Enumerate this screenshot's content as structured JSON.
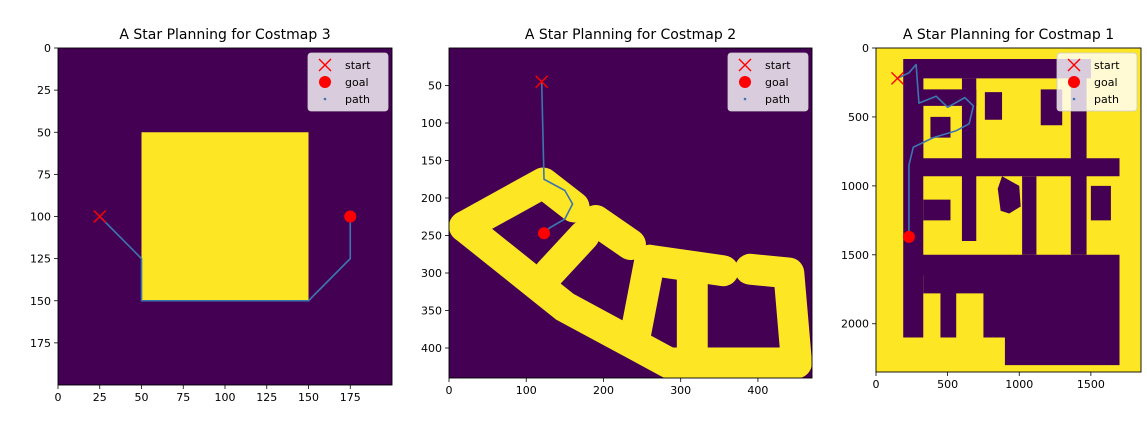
{
  "colors": {
    "free": "#440154",
    "obstacle": "#fde725",
    "path": "#3b76af",
    "start": "#ff0000",
    "goal": "#ff0000"
  },
  "legend_labels": [
    "start",
    "goal",
    "path"
  ],
  "chart_data": [
    {
      "type": "heatmap",
      "title": "A Star Planning for Costmap 3",
      "xlim": [
        0,
        200
      ],
      "ylim": [
        200,
        0
      ],
      "xticks": [
        0,
        25,
        50,
        75,
        100,
        125,
        150,
        175
      ],
      "yticks": [
        0,
        25,
        50,
        75,
        100,
        125,
        150,
        175
      ],
      "colormap": "viridis",
      "background": "free",
      "obstacles": [
        {
          "shape": "rect",
          "x0": 50,
          "y0": 50,
          "x1": 150,
          "y1": 150
        }
      ],
      "start": [
        25,
        100
      ],
      "goal": [
        175,
        100
      ],
      "path": [
        [
          25,
          100
        ],
        [
          50,
          125
        ],
        [
          50,
          150
        ],
        [
          150,
          150
        ],
        [
          175,
          125
        ],
        [
          175,
          100
        ]
      ],
      "legend": [
        "start",
        "goal",
        "path"
      ],
      "legend_position": "top-right"
    },
    {
      "type": "heatmap",
      "title": "A Star Planning for Costmap 2",
      "xlim": [
        0,
        470
      ],
      "ylim": [
        440,
        0
      ],
      "xticks": [
        0,
        100,
        200,
        300,
        400
      ],
      "yticks": [
        50,
        100,
        150,
        200,
        250,
        300,
        350,
        400
      ],
      "colormap": "viridis",
      "background": "free",
      "obstacles": [
        {
          "shape": "stroke",
          "width": 40,
          "points": [
            [
              20,
              238
            ],
            [
              122,
              180
            ],
            [
              162,
              212
            ]
          ]
        },
        {
          "shape": "stroke",
          "width": 40,
          "points": [
            [
              20,
              238
            ],
            [
              150,
              345
            ],
            [
              285,
              420
            ],
            [
              450,
              420
            ],
            [
              440,
              300
            ],
            [
              390,
              295
            ]
          ]
        },
        {
          "shape": "stroke",
          "width": 40,
          "points": [
            [
              190,
              230
            ],
            [
              235,
              262
            ]
          ]
        },
        {
          "shape": "stroke",
          "width": 40,
          "points": [
            [
              130,
              300
            ],
            [
              175,
              250
            ]
          ]
        },
        {
          "shape": "stroke",
          "width": 40,
          "points": [
            [
              260,
              283
            ],
            [
              355,
              297
            ]
          ]
        },
        {
          "shape": "stroke",
          "width": 40,
          "points": [
            [
              260,
              283
            ],
            [
              240,
              390
            ]
          ]
        },
        {
          "shape": "stroke",
          "width": 40,
          "points": [
            [
              315,
              300
            ],
            [
              315,
              418
            ]
          ]
        }
      ],
      "start": [
        120,
        45
      ],
      "goal": [
        123,
        247
      ],
      "path": [
        [
          120,
          45
        ],
        [
          123,
          175
        ],
        [
          150,
          190
        ],
        [
          160,
          208
        ],
        [
          150,
          228
        ],
        [
          130,
          240
        ],
        [
          123,
          247
        ]
      ],
      "legend": [
        "start",
        "goal",
        "path"
      ],
      "legend_position": "top-right"
    },
    {
      "type": "heatmap",
      "title": "A Star Planning for Costmap 1",
      "xlim": [
        0,
        1850
      ],
      "ylim": [
        2350,
        0
      ],
      "xticks": [
        0,
        500,
        1000,
        1500
      ],
      "yticks": [
        0,
        500,
        1000,
        1500,
        2000
      ],
      "colormap": "viridis",
      "background": "obstacle",
      "legend_position": "top-right",
      "legend": [
        "start",
        "goal",
        "path"
      ],
      "free_regions": [
        {
          "shape": "poly",
          "points": [
            [
              230,
              80
            ],
            [
              1500,
              80
            ],
            [
              1500,
              220
            ],
            [
              330,
              220
            ],
            [
              330,
              800
            ],
            [
              230,
              800
            ]
          ]
        },
        {
          "shape": "poly",
          "points": [
            [
              230,
              300
            ],
            [
              700,
              300
            ],
            [
              700,
              420
            ],
            [
              230,
              420
            ]
          ]
        },
        {
          "shape": "poly",
          "points": [
            [
              230,
              800
            ],
            [
              1700,
              800
            ],
            [
              1700,
              930
            ],
            [
              230,
              930
            ]
          ]
        },
        {
          "shape": "poly",
          "points": [
            [
              190,
              80
            ],
            [
              330,
              80
            ],
            [
              330,
              2100
            ],
            [
              190,
              2100
            ]
          ]
        },
        {
          "shape": "poly",
          "points": [
            [
              600,
              220
            ],
            [
              700,
              220
            ],
            [
              700,
              1400
            ],
            [
              600,
              1400
            ]
          ]
        },
        {
          "shape": "poly",
          "points": [
            [
              230,
              1500
            ],
            [
              1700,
              1500
            ],
            [
              1700,
              1650
            ],
            [
              230,
              1650
            ]
          ]
        },
        {
          "shape": "poly",
          "points": [
            [
              750,
              1650
            ],
            [
              1700,
              1650
            ],
            [
              1700,
              2100
            ],
            [
              750,
              2100
            ]
          ]
        },
        {
          "shape": "poly",
          "points": [
            [
              900,
              2100
            ],
            [
              1700,
              2100
            ],
            [
              1700,
              2300
            ],
            [
              900,
              2300
            ]
          ]
        },
        {
          "shape": "poly",
          "points": [
            [
              750,
              1650
            ],
            [
              880,
              1650
            ],
            [
              750,
              1780
            ]
          ]
        },
        {
          "shape": "poly",
          "points": [
            [
              330,
              1650
            ],
            [
              760,
              1650
            ],
            [
              760,
              1780
            ],
            [
              330,
              1780
            ]
          ]
        },
        {
          "shape": "poly",
          "points": [
            [
              450,
              1750
            ],
            [
              560,
              1750
            ],
            [
              560,
              2100
            ],
            [
              450,
              2100
            ]
          ]
        },
        {
          "shape": "poly",
          "points": [
            [
              1360,
              220
            ],
            [
              1470,
              220
            ],
            [
              1470,
              1500
            ],
            [
              1360,
              1500
            ]
          ]
        },
        {
          "shape": "poly",
          "points": [
            [
              1020,
              930
            ],
            [
              1120,
              930
            ],
            [
              1120,
              1500
            ],
            [
              1020,
              1500
            ]
          ]
        },
        {
          "shape": "poly",
          "points": [
            [
              880,
              930
            ],
            [
              1000,
              1000
            ],
            [
              1010,
              1150
            ],
            [
              930,
              1200
            ],
            [
              870,
              1180
            ],
            [
              850,
              1020
            ]
          ]
        },
        {
          "shape": "poly",
          "points": [
            [
              380,
              500
            ],
            [
              520,
              500
            ],
            [
              520,
              650
            ],
            [
              380,
              650
            ]
          ]
        },
        {
          "shape": "poly",
          "points": [
            [
              760,
              320
            ],
            [
              880,
              320
            ],
            [
              880,
              520
            ],
            [
              760,
              520
            ]
          ]
        },
        {
          "shape": "poly",
          "points": [
            [
              1150,
              300
            ],
            [
              1300,
              300
            ],
            [
              1300,
              560
            ],
            [
              1150,
              560
            ]
          ]
        },
        {
          "shape": "poly",
          "points": [
            [
              330,
              1100
            ],
            [
              520,
              1100
            ],
            [
              520,
              1250
            ],
            [
              330,
              1250
            ]
          ]
        },
        {
          "shape": "poly",
          "points": [
            [
              1500,
              1000
            ],
            [
              1640,
              1000
            ],
            [
              1640,
              1250
            ],
            [
              1500,
              1250
            ]
          ]
        }
      ],
      "start": [
        150,
        220
      ],
      "goal": [
        230,
        1370
      ],
      "path": [
        [
          150,
          220
        ],
        [
          230,
          180
        ],
        [
          280,
          120
        ],
        [
          300,
          400
        ],
        [
          420,
          350
        ],
        [
          500,
          430
        ],
        [
          620,
          360
        ],
        [
          680,
          420
        ],
        [
          650,
          550
        ],
        [
          560,
          600
        ],
        [
          400,
          650
        ],
        [
          260,
          720
        ],
        [
          230,
          850
        ],
        [
          230,
          1370
        ]
      ]
    }
  ]
}
